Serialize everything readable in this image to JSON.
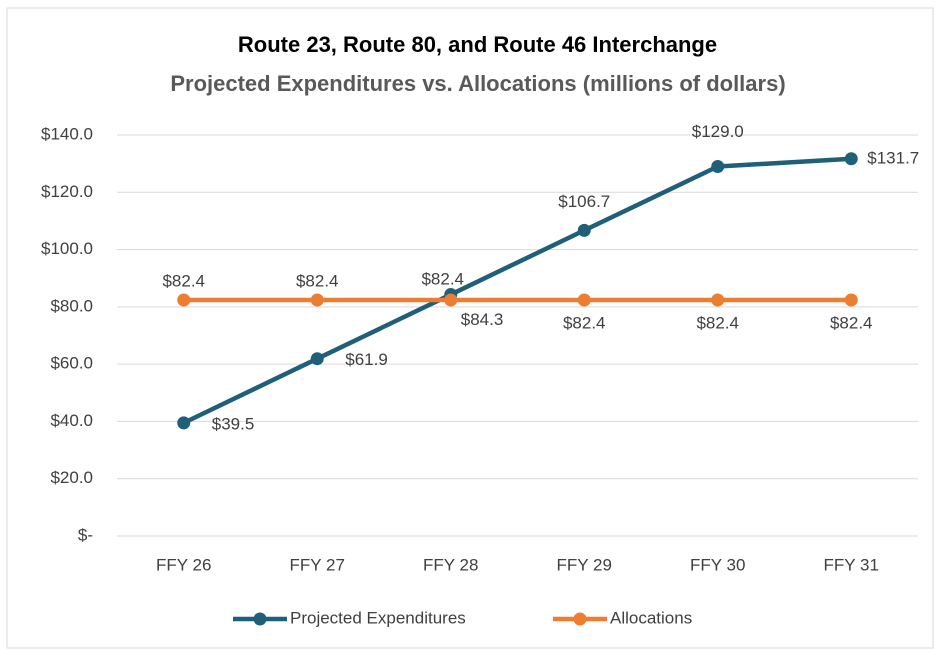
{
  "chart_data": {
    "type": "line",
    "title": "Route 23, Route 80, and Route 46 Interchange",
    "subtitle": "Projected Expenditures vs. Allocations (millions of dollars)",
    "categories": [
      "FFY 26",
      "FFY 27",
      "FFY 28",
      "FFY 29",
      "FFY 30",
      "FFY 31"
    ],
    "series": [
      {
        "name": "Projected Expenditures",
        "color": "#1f5f7a",
        "values": [
          39.5,
          61.9,
          84.3,
          106.7,
          129.0,
          131.7
        ],
        "value_labels": [
          "$39.5",
          "$61.9",
          "$84.3",
          "$106.7",
          "$129.0",
          "$131.7"
        ]
      },
      {
        "name": "Allocations",
        "color": "#ed7d31",
        "values": [
          82.4,
          82.4,
          82.4,
          82.4,
          82.4,
          82.4
        ],
        "value_labels": [
          "$82.4",
          "$82.4",
          "$82.4",
          "$82.4",
          "$82.4",
          "$82.4"
        ]
      }
    ],
    "ylim": [
      0,
      140
    ],
    "yticks": [
      {
        "value": 0,
        "label": "$-"
      },
      {
        "value": 20,
        "label": "$20.0"
      },
      {
        "value": 40,
        "label": "$40.0"
      },
      {
        "value": 60,
        "label": "$60.0"
      },
      {
        "value": 80,
        "label": "$80.0"
      },
      {
        "value": 100,
        "label": "$100.0"
      },
      {
        "value": 120,
        "label": "$120.0"
      },
      {
        "value": 140,
        "label": "$140.0"
      }
    ],
    "grid": true,
    "legend": "bottom"
  }
}
